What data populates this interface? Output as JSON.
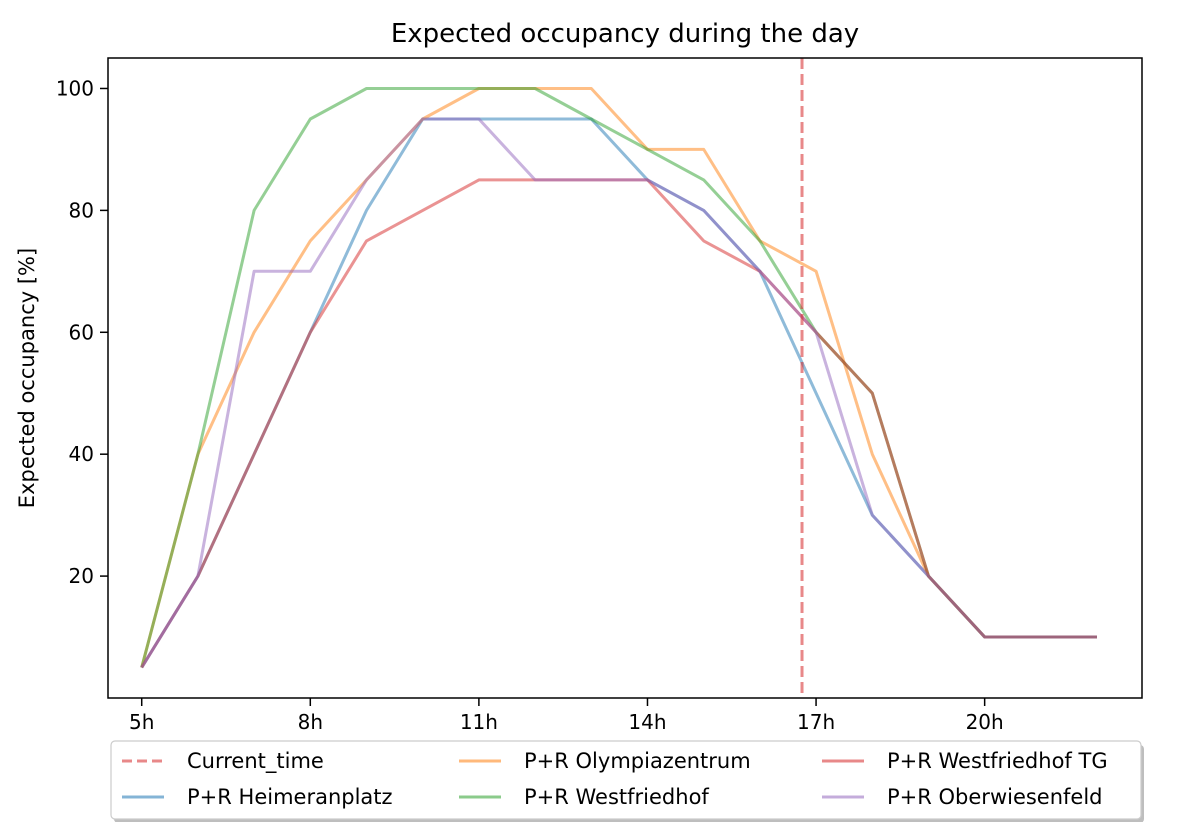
{
  "chart_data": {
    "type": "line",
    "title": "Expected occupancy during the day",
    "xlabel": "",
    "ylabel": "Expected occupancy [%]",
    "xlim": [
      4.4,
      22.8
    ],
    "ylim": [
      0,
      105
    ],
    "x_ticks": [
      5,
      8,
      11,
      14,
      17,
      20
    ],
    "x_tick_labels": [
      "5h",
      "8h",
      "11h",
      "14h",
      "17h",
      "20h"
    ],
    "y_ticks": [
      20,
      40,
      60,
      80,
      100
    ],
    "y_tick_labels": [
      "20",
      "40",
      "60",
      "80",
      "100"
    ],
    "grid": false,
    "legend_placement": "bottom-center",
    "current_time": {
      "name": "Current_time",
      "x": 16.75,
      "color": "#d62728"
    },
    "x": [
      5,
      6,
      7,
      8,
      9,
      10,
      11,
      12,
      13,
      14,
      15,
      16,
      17,
      18,
      19,
      20,
      21,
      22
    ],
    "series": [
      {
        "name": "P+R Heimeranplatz",
        "color": "#1f77b4",
        "values": [
          5,
          20,
          40,
          60,
          80,
          95,
          95,
          95,
          95,
          85,
          80,
          70,
          50,
          30,
          20,
          10,
          10,
          10
        ]
      },
      {
        "name": "P+R Olympiazentrum",
        "color": "#ff7f0e",
        "values": [
          5,
          40,
          60,
          75,
          85,
          95,
          100,
          100,
          100,
          90,
          90,
          75,
          70,
          40,
          20,
          10,
          10,
          10
        ]
      },
      {
        "name": "P+R Westfriedhof",
        "color": "#2ca02c",
        "values": [
          5,
          40,
          80,
          95,
          100,
          100,
          100,
          100,
          95,
          90,
          85,
          75,
          60,
          50,
          20,
          10,
          10,
          10
        ]
      },
      {
        "name": "P+R Westfriedhof TG",
        "color": "#d62728",
        "values": [
          5,
          20,
          40,
          60,
          75,
          80,
          85,
          85,
          85,
          85,
          75,
          70,
          60,
          50,
          20,
          10,
          10,
          10
        ]
      },
      {
        "name": "P+R Oberwiesenfeld",
        "color": "#9467bd",
        "values": [
          5,
          20,
          70,
          70,
          85,
          95,
          95,
          85,
          85,
          85,
          80,
          70,
          60,
          30,
          20,
          10,
          10,
          10
        ]
      }
    ]
  }
}
